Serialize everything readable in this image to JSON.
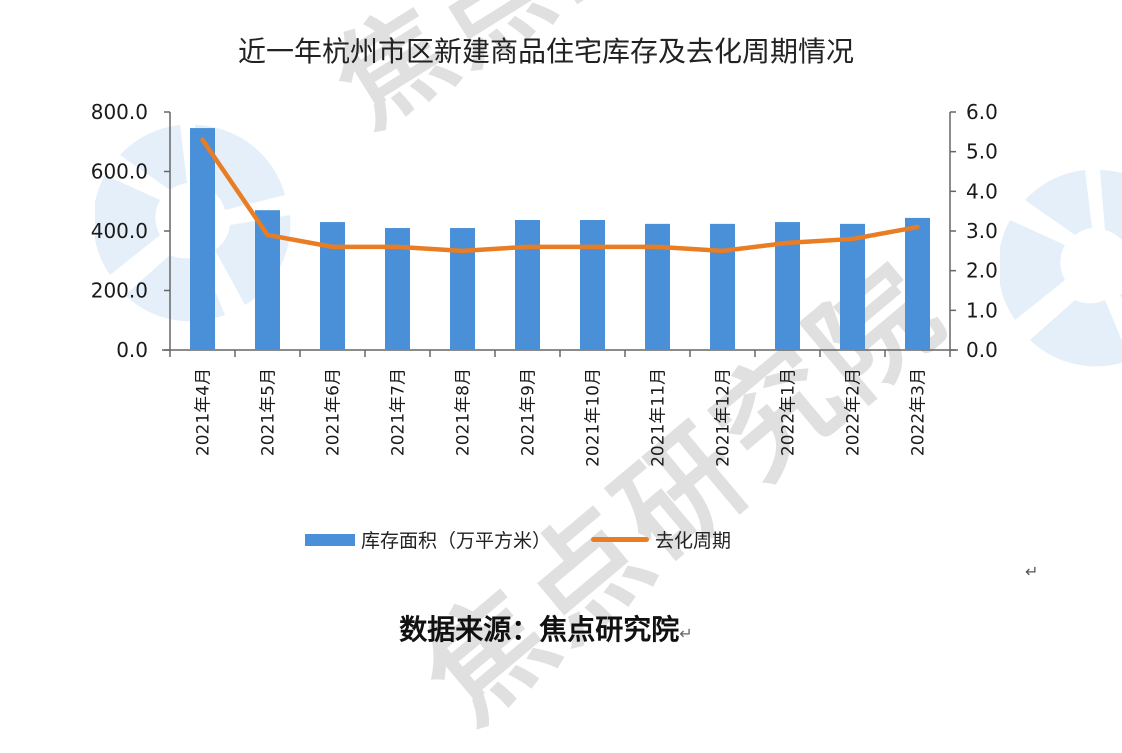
{
  "title": "近一年杭州市区新建商品住宅库存及去化周期情况",
  "source_text": "数据来源：焦点研究院",
  "return_mark": "↵",
  "watermark": {
    "text": "焦点研究院",
    "text_color": "#d0d0d0",
    "logo_color": "#cfe2f5"
  },
  "legend": {
    "bar_label": "库存面积（万平方米）",
    "line_label": "去化周期",
    "bar_color": "#4a90d9",
    "line_color": "#e87d24"
  },
  "left_axis": {
    "ticks": [
      "0.0",
      "200.0",
      "400.0",
      "600.0",
      "800.0"
    ]
  },
  "right_axis": {
    "ticks": [
      "0.0",
      "1.0",
      "2.0",
      "3.0",
      "4.0",
      "5.0",
      "6.0"
    ]
  },
  "chart_data": {
    "type": "bar",
    "title": "近一年杭州市区新建商品住宅库存及去化周期情况",
    "categories": [
      "2021年4月",
      "2021年5月",
      "2021年6月",
      "2021年7月",
      "2021年8月",
      "2021年9月",
      "2021年10月",
      "2021年11月",
      "2021年12月",
      "2022年1月",
      "2022年2月",
      "2022年3月"
    ],
    "series": [
      {
        "name": "库存面积（万平方米）",
        "type": "bar",
        "axis": "left",
        "values": [
          746,
          470,
          430,
          410,
          410,
          437,
          437,
          424,
          424,
          430,
          424,
          444
        ]
      },
      {
        "name": "去化周期",
        "type": "line",
        "axis": "right",
        "values": [
          5.3,
          2.9,
          2.6,
          2.6,
          2.5,
          2.6,
          2.6,
          2.6,
          2.5,
          2.7,
          2.8,
          3.1
        ]
      }
    ],
    "xlabel": "",
    "ylabel": "库存面积（万平方米）",
    "y2label": "去化周期",
    "ylim": [
      0,
      800
    ],
    "y2lim": [
      0,
      6
    ],
    "grid": false,
    "legend_position": "bottom",
    "source": "数据来源：焦点研究院"
  }
}
